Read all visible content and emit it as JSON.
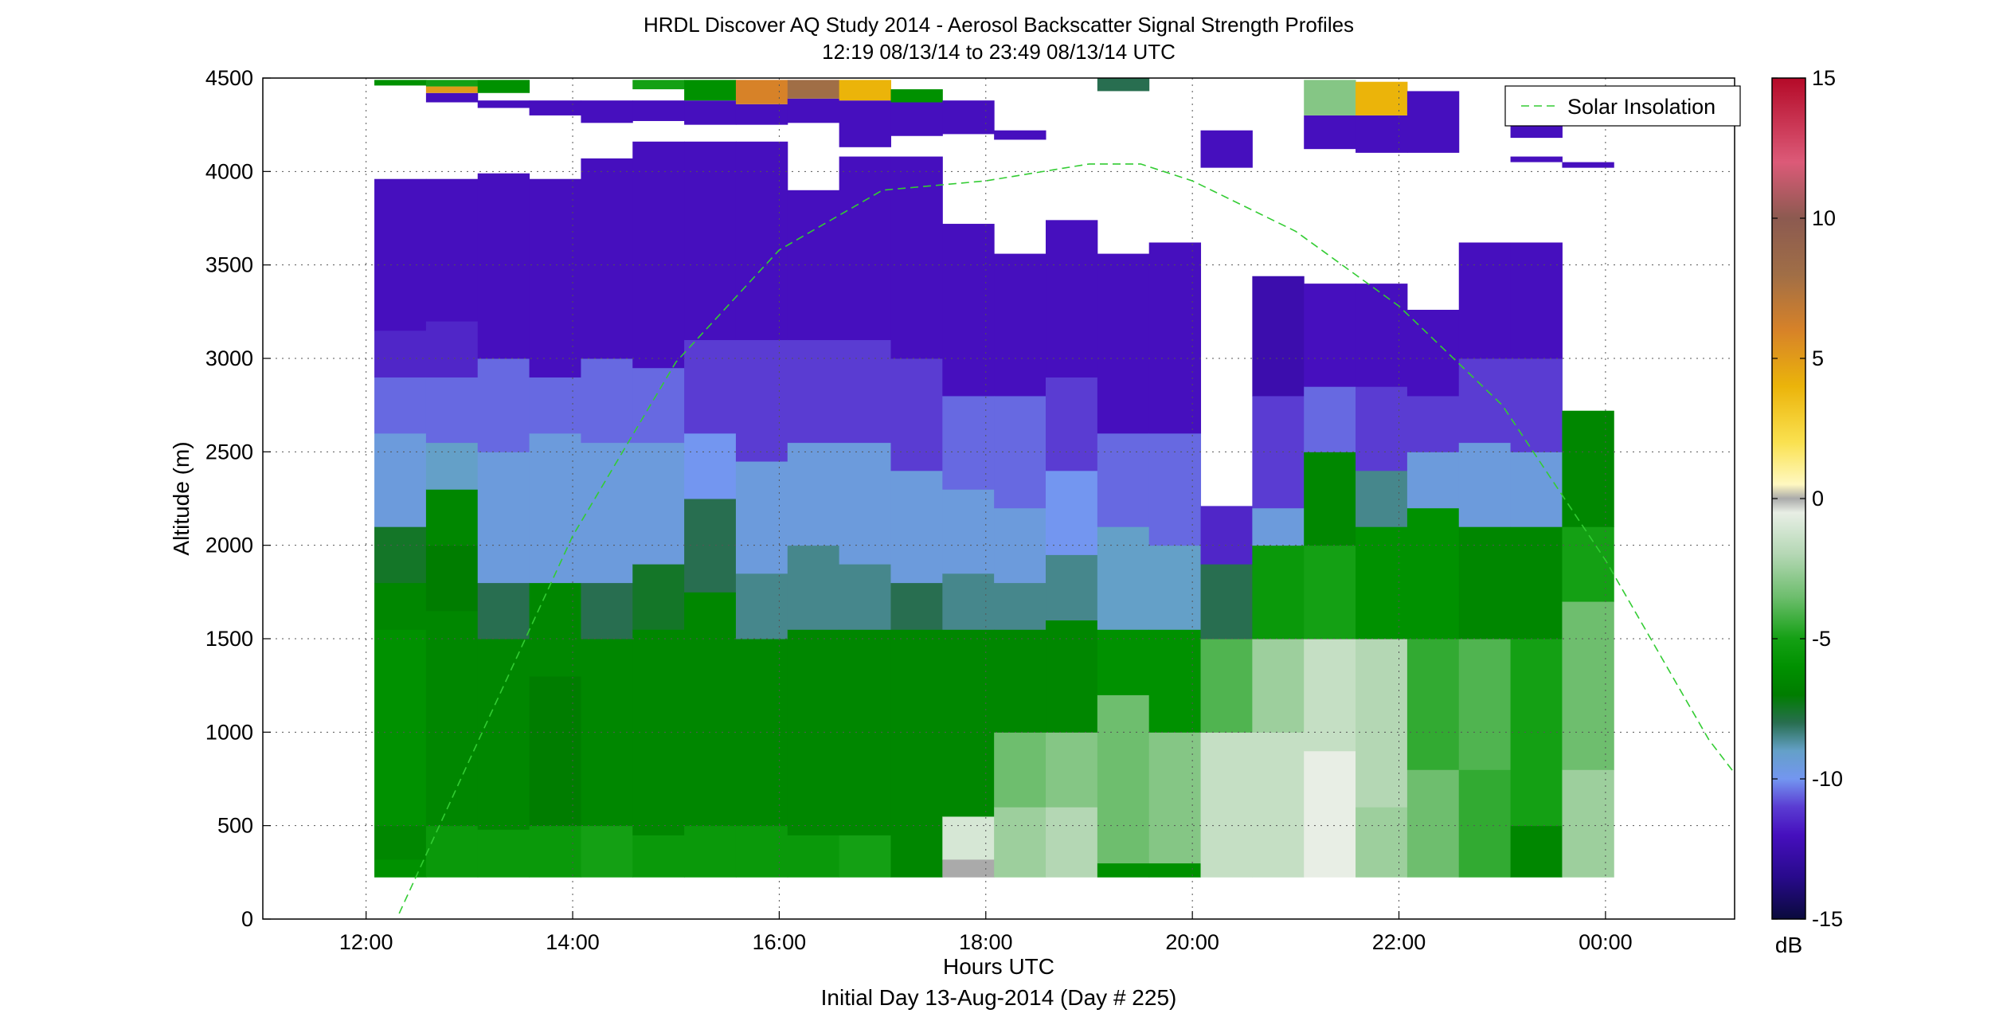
{
  "chart_data": {
    "type": "heatmap",
    "title": "HRDL Discover AQ Study 2014 - Aerosol Backscatter Signal Strength Profiles",
    "subtitle": "12:19 08/13/14 to 23:49 08/13/14  UTC",
    "xlabel": "Hours UTC",
    "xlabel2": "Initial Day 13-Aug-2014 (Day # 225)",
    "ylabel": "Altitude (m)",
    "xlim": [
      11.0,
      25.25
    ],
    "ylim": [
      0,
      4500
    ],
    "x_ticks": [
      12,
      14,
      16,
      18,
      20,
      22,
      24
    ],
    "x_tick_labels": [
      "12:00",
      "14:00",
      "16:00",
      "18:00",
      "20:00",
      "22:00",
      "00:00"
    ],
    "y_ticks": [
      0,
      500,
      1000,
      1500,
      2000,
      2500,
      3000,
      3500,
      4000,
      4500
    ],
    "y_tick_labels": [
      "0",
      "500",
      "1000",
      "1500",
      "2000",
      "2500",
      "3000",
      "3500",
      "4000",
      "4500"
    ],
    "grid": true,
    "colorbar": {
      "label": "dB",
      "range": [
        -15,
        15
      ],
      "ticks": [
        -15,
        -10,
        -5,
        0,
        5,
        10,
        15
      ],
      "tick_labels": [
        "-15",
        "-10",
        "-5",
        "0",
        "5",
        "10",
        "15"
      ]
    },
    "legend": {
      "position": "top-right",
      "entries": [
        "Solar Insolation"
      ]
    },
    "solar_insolation_curve": {
      "color": "#33cc33",
      "points": [
        [
          12.32,
          30
        ],
        [
          13,
          850
        ],
        [
          14,
          2050
        ],
        [
          15,
          2980
        ],
        [
          16,
          3580
        ],
        [
          17,
          3900
        ],
        [
          18,
          3950
        ],
        [
          19,
          4040
        ],
        [
          19.5,
          4040
        ],
        [
          20,
          3950
        ],
        [
          21,
          3680
        ],
        [
          22,
          3280
        ],
        [
          23,
          2750
        ],
        [
          24,
          1920
        ],
        [
          25,
          960
        ],
        [
          25.25,
          780
        ]
      ]
    },
    "bin_width_hours": 0.5,
    "profiles": [
      {
        "t": 12.33,
        "top": 3960,
        "layers": [
          [
            225,
            320,
            -6
          ],
          [
            320,
            500,
            -6.5
          ],
          [
            500,
            1550,
            -6
          ],
          [
            1550,
            1800,
            -6.5
          ],
          [
            1800,
            2100,
            -7.5
          ],
          [
            2100,
            2600,
            -9.5
          ],
          [
            2600,
            2900,
            -10.5
          ],
          [
            2900,
            3150,
            -11.5
          ],
          [
            3150,
            3960,
            -12
          ]
        ]
      },
      {
        "t": 12.83,
        "top": 3960,
        "layers": [
          [
            225,
            500,
            -5.5
          ],
          [
            500,
            1650,
            -6.5
          ],
          [
            1650,
            2000,
            -7
          ],
          [
            2000,
            2300,
            -6.5
          ],
          [
            2300,
            2550,
            -9
          ],
          [
            2550,
            2900,
            -10.5
          ],
          [
            2900,
            3200,
            -11.5
          ],
          [
            3200,
            3960,
            -12
          ]
        ]
      },
      {
        "t": 13.33,
        "top": 3990,
        "layers": [
          [
            225,
            480,
            -5.5
          ],
          [
            480,
            1500,
            -6.5
          ],
          [
            1500,
            1800,
            -8
          ],
          [
            1800,
            2500,
            -9.5
          ],
          [
            2500,
            3000,
            -10.5
          ],
          [
            3000,
            3990,
            -12
          ]
        ]
      },
      {
        "t": 13.83,
        "top": 3960,
        "layers": [
          [
            225,
            500,
            -5.5
          ],
          [
            500,
            1300,
            -7
          ],
          [
            1300,
            1800,
            -6.5
          ],
          [
            1800,
            2600,
            -9.5
          ],
          [
            2600,
            2900,
            -10.5
          ],
          [
            2900,
            3960,
            -12
          ]
        ]
      },
      {
        "t": 14.33,
        "top": 4070,
        "layers": [
          [
            225,
            500,
            -5
          ],
          [
            500,
            1500,
            -6.5
          ],
          [
            1500,
            1800,
            -8
          ],
          [
            1800,
            2550,
            -9.5
          ],
          [
            2550,
            3000,
            -10.5
          ],
          [
            3000,
            4070,
            -12
          ]
        ]
      },
      {
        "t": 14.83,
        "top": 4160,
        "layers": [
          [
            225,
            450,
            -5.5
          ],
          [
            450,
            1550,
            -6.5
          ],
          [
            1550,
            1900,
            -7.5
          ],
          [
            1900,
            2550,
            -9.5
          ],
          [
            2550,
            2950,
            -10.5
          ],
          [
            2950,
            4160,
            -12
          ]
        ]
      },
      {
        "t": 15.33,
        "top": 4160,
        "layers": [
          [
            225,
            500,
            -5.5
          ],
          [
            500,
            1750,
            -6.5
          ],
          [
            1750,
            2250,
            -8
          ],
          [
            2250,
            2600,
            -10
          ],
          [
            2600,
            3100,
            -11
          ],
          [
            3100,
            4160,
            -12
          ]
        ]
      },
      {
        "t": 15.83,
        "top": 4160,
        "layers": [
          [
            225,
            500,
            -5.5
          ],
          [
            500,
            1500,
            -6.5
          ],
          [
            1500,
            1850,
            -8.5
          ],
          [
            1850,
            2450,
            -9.5
          ],
          [
            2450,
            3100,
            -11
          ],
          [
            3100,
            4160,
            -12
          ]
        ]
      },
      {
        "t": 16.33,
        "top": 3900,
        "layers": [
          [
            225,
            450,
            -5.5
          ],
          [
            450,
            1550,
            -6.5
          ],
          [
            1550,
            2000,
            -8.5
          ],
          [
            2000,
            2550,
            -9.5
          ],
          [
            2550,
            3100,
            -11
          ],
          [
            3100,
            3900,
            -12
          ]
        ]
      },
      {
        "t": 16.83,
        "top": 4080,
        "layers": [
          [
            225,
            450,
            -5
          ],
          [
            450,
            1550,
            -6.5
          ],
          [
            1550,
            1900,
            -8.5
          ],
          [
            1900,
            2550,
            -9.5
          ],
          [
            2550,
            3100,
            -11
          ],
          [
            3100,
            4080,
            -12
          ]
        ]
      },
      {
        "t": 17.33,
        "top": 4080,
        "layers": [
          [
            225,
            1550,
            -6.5
          ],
          [
            1550,
            1800,
            -8
          ],
          [
            1800,
            2400,
            -9.5
          ],
          [
            2400,
            3000,
            -11
          ],
          [
            3000,
            4080,
            -12
          ]
        ]
      },
      {
        "t": 17.83,
        "top": 3720,
        "layers": [
          [
            225,
            320,
            0
          ],
          [
            320,
            550,
            -1
          ],
          [
            550,
            1550,
            -6.5
          ],
          [
            1550,
            1850,
            -8.5
          ],
          [
            1850,
            2300,
            -9.5
          ],
          [
            2300,
            2800,
            -10.5
          ],
          [
            2800,
            3720,
            -12
          ]
        ]
      },
      {
        "t": 18.33,
        "top": 3560,
        "layers": [
          [
            225,
            600,
            -2.5
          ],
          [
            600,
            1000,
            -3.5
          ],
          [
            1000,
            1550,
            -6.5
          ],
          [
            1550,
            1800,
            -8.5
          ],
          [
            1800,
            2200,
            -9.5
          ],
          [
            2200,
            2800,
            -10.5
          ],
          [
            2800,
            3560,
            -12
          ]
        ]
      },
      {
        "t": 18.83,
        "top": 3740,
        "layers": [
          [
            225,
            600,
            -2
          ],
          [
            600,
            1000,
            -3
          ],
          [
            1000,
            1600,
            -6.5
          ],
          [
            1600,
            1950,
            -8.5
          ],
          [
            1950,
            2400,
            -10
          ],
          [
            2400,
            2900,
            -11
          ],
          [
            2900,
            3740,
            -12
          ]
        ]
      },
      {
        "t": 19.33,
        "top": 3560,
        "layers": [
          [
            225,
            300,
            -6
          ],
          [
            300,
            1200,
            -3.5
          ],
          [
            1200,
            1550,
            -6
          ],
          [
            1550,
            2100,
            -9
          ],
          [
            2100,
            2600,
            -10.5
          ],
          [
            2600,
            3560,
            -12
          ]
        ]
      },
      {
        "t": 19.83,
        "top": 3620,
        "layers": [
          [
            225,
            300,
            -6
          ],
          [
            300,
            1000,
            -3
          ],
          [
            1000,
            1550,
            -6
          ],
          [
            1550,
            2000,
            -9
          ],
          [
            2000,
            2600,
            -10.5
          ],
          [
            2600,
            3620,
            -12
          ]
        ]
      },
      {
        "t": 20.33,
        "top": 2210,
        "layers": [
          [
            225,
            1000,
            -1.5
          ],
          [
            1000,
            1500,
            -4
          ],
          [
            1500,
            1900,
            -8
          ],
          [
            1900,
            2210,
            -11.5
          ]
        ]
      },
      {
        "t": 20.83,
        "top": 3440,
        "layers": [
          [
            225,
            1000,
            -1.5
          ],
          [
            1000,
            1500,
            -2.5
          ],
          [
            1500,
            2000,
            -5.5
          ],
          [
            2000,
            2200,
            -9.5
          ],
          [
            2200,
            2800,
            -11
          ],
          [
            2800,
            3440,
            -12.5
          ]
        ]
      },
      {
        "t": 21.33,
        "top": 3400,
        "layers": [
          [
            225,
            900,
            -0.5
          ],
          [
            900,
            1500,
            -1.5
          ],
          [
            1500,
            2000,
            -5
          ],
          [
            2000,
            2500,
            -6.5
          ],
          [
            2500,
            2850,
            -10.5
          ],
          [
            2850,
            3400,
            -12
          ]
        ]
      },
      {
        "t": 21.83,
        "top": 3400,
        "layers": [
          [
            225,
            600,
            -2.5
          ],
          [
            600,
            1500,
            -2
          ],
          [
            1500,
            2100,
            -6
          ],
          [
            2100,
            2400,
            -8.5
          ],
          [
            2400,
            2850,
            -11
          ],
          [
            2850,
            3400,
            -12
          ]
        ]
      },
      {
        "t": 22.33,
        "top": 3260,
        "layers": [
          [
            225,
            800,
            -3.5
          ],
          [
            800,
            1500,
            -4.5
          ],
          [
            1500,
            2200,
            -6
          ],
          [
            2200,
            2500,
            -9.5
          ],
          [
            2500,
            2800,
            -11
          ],
          [
            2800,
            3260,
            -12
          ]
        ]
      },
      {
        "t": 22.83,
        "top": 3620,
        "layers": [
          [
            225,
            800,
            -4.5
          ],
          [
            800,
            1500,
            -4
          ],
          [
            1500,
            2100,
            -6.5
          ],
          [
            2100,
            2550,
            -9.5
          ],
          [
            2550,
            3000,
            -11
          ],
          [
            3000,
            3620,
            -12
          ]
        ]
      },
      {
        "t": 23.33,
        "top": 3620,
        "layers": [
          [
            225,
            500,
            -6.5
          ],
          [
            500,
            1500,
            -5
          ],
          [
            1500,
            2100,
            -6.5
          ],
          [
            2100,
            2500,
            -9.5
          ],
          [
            2500,
            3000,
            -11
          ],
          [
            3000,
            3620,
            -12
          ]
        ]
      },
      {
        "t": 23.83,
        "top": 2720,
        "layers": [
          [
            225,
            800,
            -2.5
          ],
          [
            800,
            1700,
            -3.5
          ],
          [
            1700,
            2100,
            -5
          ],
          [
            2100,
            2720,
            -6.5
          ]
        ]
      }
    ],
    "upper_fragments": [
      {
        "t": 12.33,
        "y0": 4460,
        "y1": 4490,
        "v": -6
      },
      {
        "t": 12.83,
        "y0": 4370,
        "y1": 4420,
        "v": -12
      },
      {
        "t": 12.83,
        "y0": 4420,
        "y1": 4455,
        "v": 5
      },
      {
        "t": 12.83,
        "y0": 4455,
        "y1": 4490,
        "v": -5
      },
      {
        "t": 13.33,
        "y0": 4340,
        "y1": 4380,
        "v": -12
      },
      {
        "t": 13.33,
        "y0": 4420,
        "y1": 4490,
        "v": -6
      },
      {
        "t": 13.83,
        "y0": 4300,
        "y1": 4380,
        "v": -12
      },
      {
        "t": 14.33,
        "y0": 4260,
        "y1": 4380,
        "v": -12
      },
      {
        "t": 14.83,
        "y0": 4270,
        "y1": 4380,
        "v": -12
      },
      {
        "t": 14.83,
        "y0": 4440,
        "y1": 4490,
        "v": -5
      },
      {
        "t": 15.33,
        "y0": 4250,
        "y1": 4380,
        "v": -12
      },
      {
        "t": 15.33,
        "y0": 4380,
        "y1": 4490,
        "v": -6
      },
      {
        "t": 15.83,
        "y0": 4250,
        "y1": 4360,
        "v": -12
      },
      {
        "t": 15.83,
        "y0": 4360,
        "y1": 4490,
        "v": 6
      },
      {
        "t": 16.33,
        "y0": 4260,
        "y1": 4390,
        "v": -12
      },
      {
        "t": 16.33,
        "y0": 4390,
        "y1": 4490,
        "v": 8
      },
      {
        "t": 16.83,
        "y0": 4130,
        "y1": 4380,
        "v": -12
      },
      {
        "t": 16.83,
        "y0": 4380,
        "y1": 4490,
        "v": 4
      },
      {
        "t": 17.33,
        "y0": 4190,
        "y1": 4370,
        "v": -12
      },
      {
        "t": 17.33,
        "y0": 4370,
        "y1": 4440,
        "v": -6
      },
      {
        "t": 17.83,
        "y0": 4200,
        "y1": 4380,
        "v": -12
      },
      {
        "t": 18.33,
        "y0": 4170,
        "y1": 4220,
        "v": -12
      },
      {
        "t": 19.33,
        "y0": 4430,
        "y1": 4500,
        "v": -8
      },
      {
        "t": 20.33,
        "y0": 4020,
        "y1": 4220,
        "v": -12
      },
      {
        "t": 21.33,
        "y0": 4120,
        "y1": 4300,
        "v": -12
      },
      {
        "t": 21.33,
        "y0": 4300,
        "y1": 4490,
        "v": -3
      },
      {
        "t": 21.83,
        "y0": 4100,
        "y1": 4300,
        "v": -12
      },
      {
        "t": 21.83,
        "y0": 4300,
        "y1": 4480,
        "v": 4
      },
      {
        "t": 22.33,
        "y0": 4100,
        "y1": 4430,
        "v": -12
      },
      {
        "t": 23.33,
        "y0": 4180,
        "y1": 4310,
        "v": -12
      },
      {
        "t": 23.33,
        "y0": 4050,
        "y1": 4080,
        "v": -12
      },
      {
        "t": 23.83,
        "y0": 4020,
        "y1": 4050,
        "v": -12
      }
    ]
  }
}
